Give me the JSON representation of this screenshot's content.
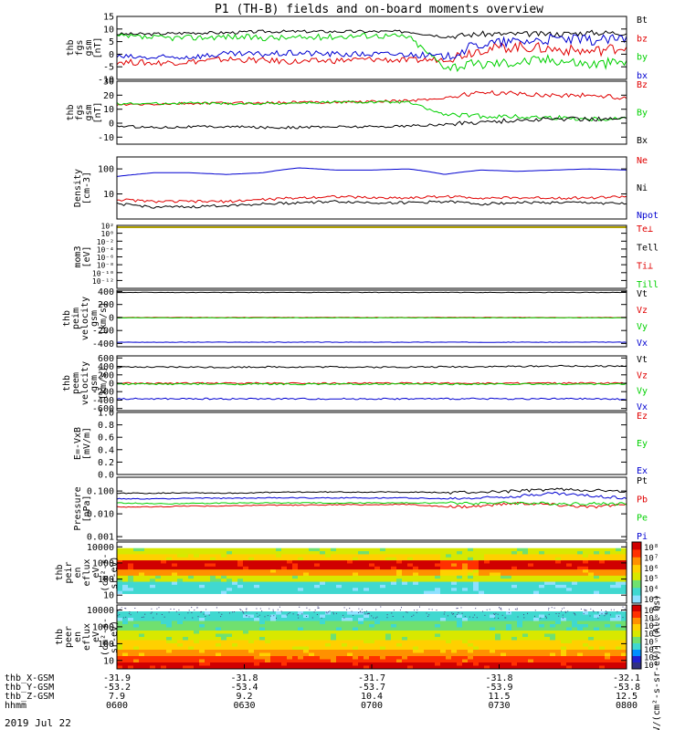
{
  "title": "P1  (TH-B) fields and on-board moments overview",
  "date": "2019 Jul 22",
  "colors": {
    "black": "#000000",
    "red": "#e00000",
    "green": "#00d000",
    "blue": "#0000d0"
  },
  "chart_data": [
    {
      "type": "line",
      "ylabel": [
        "thb",
        "fgs",
        "gsm",
        "[nT]"
      ],
      "ylim": [
        -10,
        15
      ],
      "yticks": [
        "15",
        "10",
        "5",
        "0",
        "-5",
        "-10"
      ],
      "ytick_values": [
        15,
        10,
        5,
        0,
        -5,
        -10
      ],
      "series": [
        {
          "name": "Bt",
          "color": "black",
          "values": [
            8,
            8,
            8.5,
            8.5,
            9,
            9,
            9,
            9,
            9,
            7,
            8,
            8,
            8,
            8.5,
            8.5
          ]
        },
        {
          "name": "bz",
          "color": "red",
          "values": [
            -3,
            -3.5,
            -3,
            -2,
            -2.5,
            -3,
            -2.5,
            -2,
            -2.5,
            -2,
            2,
            3,
            2,
            1,
            3
          ]
        },
        {
          "name": "by",
          "color": "green",
          "values": [
            7,
            6.5,
            6.5,
            7,
            6.5,
            6.5,
            7,
            7.5,
            7,
            -5,
            -4,
            -3,
            -2,
            -4,
            -3
          ]
        },
        {
          "name": "bx",
          "color": "blue",
          "values": [
            -1,
            -1.5,
            -1,
            0,
            0,
            0.5,
            0,
            0,
            0,
            -1,
            4,
            5,
            6,
            5.5,
            6
          ]
        }
      ]
    },
    {
      "type": "line",
      "ylabel": [
        "thb",
        "fgs",
        "gsm",
        "[nT]"
      ],
      "ylim": [
        -15,
        30
      ],
      "yticks": [
        "30",
        "20",
        "10",
        "0",
        "-10"
      ],
      "ytick_values": [
        30,
        20,
        10,
        0,
        -10
      ],
      "series": [
        {
          "name": "Bz",
          "color": "red",
          "values": [
            13,
            13.5,
            14,
            14.5,
            14.5,
            15,
            15,
            15.5,
            16,
            18,
            22,
            21,
            20,
            20,
            18
          ]
        },
        {
          "name": "By",
          "color": "green",
          "values": [
            14,
            14,
            14.5,
            14,
            14,
            14.5,
            15,
            15,
            15,
            6,
            5,
            4.5,
            4,
            3,
            3.5
          ]
        },
        {
          "name": "Bx",
          "color": "black",
          "values": [
            -2,
            -3,
            -2.5,
            -2.5,
            -3,
            -3,
            -2.5,
            -2.5,
            -2,
            -1,
            1,
            2,
            3,
            3,
            3
          ]
        }
      ]
    },
    {
      "type": "line",
      "ylabel": [
        "Density",
        "[cm-3]"
      ],
      "ylim": [
        1,
        300
      ],
      "yticks": [
        "100",
        "10"
      ],
      "ytick_values": [
        100,
        10
      ],
      "series": [
        {
          "name": "Ne",
          "color": "red",
          "values": [
            6,
            5,
            5,
            5,
            6,
            7,
            8,
            7,
            7,
            8,
            7,
            7,
            7,
            7,
            8
          ]
        },
        {
          "name": "Ni",
          "color": "black",
          "values": [
            4,
            3,
            3,
            3.5,
            4,
            4.5,
            5,
            4.5,
            4.5,
            5,
            4,
            4.5,
            4.5,
            4.5,
            4
          ]
        },
        {
          "name": "Npot",
          "color": "blue",
          "values": [
            50,
            70,
            70,
            60,
            70,
            110,
            90,
            90,
            100,
            60,
            90,
            80,
            90,
            100,
            90
          ]
        }
      ]
    },
    {
      "type": "line",
      "ylabel": [
        "mom3",
        "[eV]"
      ],
      "ylim": [
        1e-14,
        100.0
      ],
      "yticks": [
        "10²",
        "10⁰",
        "10⁻²",
        "10⁻⁴",
        "10⁻⁶",
        "10⁻⁸",
        "10⁻¹⁰",
        "10⁻¹²"
      ],
      "ytick_values": [
        2,
        0,
        -2,
        -4,
        -6,
        -8,
        -10,
        -12
      ],
      "series_labels": [
        "Te⊥",
        "Tell",
        "Ti⊥",
        "Till"
      ]
    },
    {
      "type": "line",
      "ylabel": [
        "thb",
        "peim",
        "velocity",
        "gsm",
        "[km/s]"
      ],
      "ylim": [
        -450,
        420
      ],
      "yticks": [
        "400",
        "200",
        "0",
        "-200",
        "-400"
      ],
      "ytick_values": [
        400,
        200,
        0,
        -200,
        -400
      ],
      "series": [
        {
          "name": "Vt",
          "color": "black",
          "values": [
            385,
            385,
            385,
            385,
            385,
            385,
            385,
            385,
            385,
            385,
            385,
            385,
            385,
            385,
            385
          ]
        },
        {
          "name": "Vz",
          "color": "red",
          "values": [
            0,
            0,
            0,
            0,
            0,
            0,
            0,
            0,
            0,
            0,
            0,
            0,
            0,
            0,
            0
          ]
        },
        {
          "name": "Vy",
          "color": "green",
          "values": [
            -5,
            -5,
            -5,
            -5,
            -5,
            -5,
            -5,
            -5,
            -5,
            -5,
            -5,
            -5,
            -5,
            -5,
            -5
          ]
        },
        {
          "name": "Vx",
          "color": "blue",
          "values": [
            -380,
            -380,
            -380,
            -380,
            -380,
            -380,
            -380,
            -380,
            -380,
            -380,
            -380,
            -380,
            -380,
            -380,
            -380
          ]
        }
      ]
    },
    {
      "type": "line",
      "ylabel": [
        "thb",
        "peem",
        "velocity",
        "gsm",
        "[km/s]"
      ],
      "ylim": [
        -650,
        650
      ],
      "yticks": [
        "600",
        "400",
        "200",
        "0",
        "-200",
        "-400",
        "-600"
      ],
      "ytick_values": [
        600,
        400,
        200,
        0,
        -200,
        -400,
        -600
      ],
      "series": [
        {
          "name": "Vt",
          "color": "black",
          "values": [
            380,
            380,
            385,
            380,
            390,
            385,
            390,
            380,
            385,
            390,
            395,
            400,
            410,
            405,
            410
          ]
        },
        {
          "name": "Vz",
          "color": "red",
          "values": [
            0,
            0,
            0,
            0,
            0,
            0,
            0,
            0,
            0,
            0,
            0,
            0,
            0,
            0,
            0
          ]
        },
        {
          "name": "Vy",
          "color": "green",
          "values": [
            -20,
            -20,
            -20,
            -20,
            -20,
            -20,
            -20,
            -20,
            -20,
            -20,
            -20,
            -20,
            -20,
            -20,
            -20
          ]
        },
        {
          "name": "Vx",
          "color": "blue",
          "values": [
            -370,
            -370,
            -370,
            -370,
            -370,
            -370,
            -370,
            -370,
            -370,
            -370,
            -370,
            -370,
            -370,
            -370,
            -380
          ]
        }
      ]
    },
    {
      "type": "line",
      "ylabel": [
        "E=-VxB",
        "[mV/m]"
      ],
      "ylim": [
        0,
        1
      ],
      "yticks": [
        "1.0",
        "0.8",
        "0.6",
        "0.4",
        "0.2",
        "0.0"
      ],
      "ytick_values": [
        1,
        0.8,
        0.6,
        0.4,
        0.2,
        0
      ],
      "series_labels": [
        "Ez",
        "Ey",
        "Ex"
      ]
    },
    {
      "type": "line",
      "ylabel": [
        "Pressure",
        "[nPa]"
      ],
      "ylim": [
        0.0007,
        0.4
      ],
      "yticks": [
        "0.100",
        "0.010",
        "0.001"
      ],
      "ytick_values": [
        0.1,
        0.01,
        0.001
      ],
      "series": [
        {
          "name": "Pt",
          "color": "black",
          "values": [
            0.08,
            0.08,
            0.085,
            0.08,
            0.085,
            0.09,
            0.09,
            0.09,
            0.09,
            0.085,
            0.09,
            0.1,
            0.12,
            0.11,
            0.09
          ]
        },
        {
          "name": "Pb",
          "color": "red",
          "values": [
            0.02,
            0.02,
            0.022,
            0.022,
            0.024,
            0.024,
            0.025,
            0.025,
            0.026,
            0.02,
            0.022,
            0.03,
            0.025,
            0.02,
            0.025
          ]
        },
        {
          "name": "Pe",
          "color": "green",
          "values": [
            0.03,
            0.028,
            0.028,
            0.03,
            0.03,
            0.03,
            0.03,
            0.03,
            0.03,
            0.03,
            0.03,
            0.03,
            0.028,
            0.028,
            0.028
          ]
        },
        {
          "name": "Pi",
          "color": "blue",
          "values": [
            0.045,
            0.045,
            0.048,
            0.048,
            0.05,
            0.05,
            0.05,
            0.05,
            0.05,
            0.045,
            0.05,
            0.06,
            0.08,
            0.06,
            0.05
          ]
        }
      ]
    },
    {
      "type": "heatmap",
      "ylabel": [
        "thb",
        "peir",
        "en",
        "eflux",
        "eV",
        "(cm²-s-",
        "sr-eV)"
      ],
      "yticks": [
        "10000",
        "1000",
        "100",
        "10"
      ],
      "ytick_values": [
        10000,
        1000,
        100,
        10
      ],
      "colorbar_ticks": [
        "10⁸",
        "10⁷",
        "10⁶",
        "10⁵",
        "10⁴",
        "10³"
      ]
    },
    {
      "type": "heatmap",
      "ylabel": [
        "thb",
        "peer",
        "en",
        "eflux",
        "eV",
        "(cm²-s-",
        "sr-eV)"
      ],
      "yticks": [
        "10000",
        "1000",
        "100",
        "10"
      ],
      "ytick_values": [
        10000,
        1000,
        100,
        10
      ],
      "colorbar_ticks": [
        "10⁹",
        "10⁸",
        "10⁷",
        "10⁶",
        "10⁵",
        "10⁴",
        "10³",
        "10²"
      ],
      "colorbar_label": "[eV/(cm²-s-sr-eV)] (All Qs)"
    }
  ],
  "xaxis": {
    "rows": [
      {
        "label": "thb_X-GSM",
        "values": [
          "-31.9",
          "-31.8",
          "-31.7",
          "-31.8",
          "-32.1"
        ]
      },
      {
        "label": "thb_Y-GSM",
        "values": [
          "-53.2",
          "-53.4",
          "-53.7",
          "-53.9",
          "-53.8"
        ]
      },
      {
        "label": "thb_Z-GSM",
        "values": [
          "7.9",
          "9.2",
          "10.4",
          "11.5",
          "12.5"
        ]
      },
      {
        "label": "hhmm",
        "values": [
          "0600",
          "0630",
          "0700",
          "0730",
          "0800"
        ]
      }
    ]
  }
}
